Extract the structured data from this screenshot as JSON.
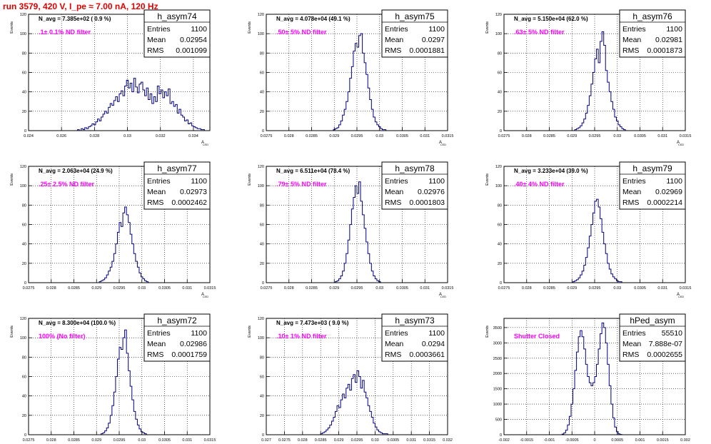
{
  "canvas_title": "run 3579,   420 V, I_pe ≈ 7.00 nA, 120 Hz",
  "common": {
    "ylabel": "Events",
    "xlabel": "A",
    "xlabel_sub": "LED",
    "stats_labels": [
      "Entries",
      "Mean",
      "RMS"
    ]
  },
  "colors": {
    "histogram_line": "#000080",
    "title_red": "#e00000",
    "annotation_magenta": "#ff00ff",
    "grid": "#000000",
    "frame": "#000000"
  },
  "chart_data": [
    {
      "type": "histogram",
      "title": "h_asym74",
      "stats": {
        "entries": "1100",
        "mean": "0.02954",
        "rms": "0.001099"
      },
      "navg_text": "N_avg = 7.385e+02 ( 0.9 %)",
      "filter_text": ".1± 0.1% ND filter",
      "xlim": [
        0.024,
        0.035
      ],
      "ylim": [
        0,
        120
      ],
      "xticks": [
        0.024,
        0.026,
        0.028,
        0.03,
        0.032,
        0.034
      ],
      "xtick_labels": [
        "0.024",
        "0.026",
        "0.028",
        "0.03",
        "0.032",
        "0.034"
      ],
      "yticks": [
        0,
        20,
        40,
        60,
        80,
        100,
        120
      ],
      "ytick_labels": [
        "0",
        "20",
        "40",
        "60",
        "80",
        "100",
        "120"
      ],
      "bin_start": 0.024,
      "bin_width": 0.00011,
      "values": [
        0,
        0,
        0,
        0,
        0,
        0,
        0,
        0,
        0,
        0,
        0,
        0,
        0,
        0,
        0,
        0,
        0,
        0,
        0,
        0,
        0,
        0,
        0,
        0,
        0,
        0,
        0,
        1,
        0,
        2,
        1,
        3,
        2,
        4,
        5,
        7,
        6,
        9,
        12,
        10,
        14,
        17,
        20,
        18,
        24,
        28,
        26,
        31,
        35,
        30,
        38,
        41,
        36,
        46,
        52,
        44,
        49,
        40,
        54,
        45,
        39,
        48,
        50,
        42,
        36,
        44,
        32,
        38,
        28,
        35,
        30,
        46,
        38,
        42,
        34,
        40,
        36,
        43,
        28,
        30,
        25,
        27,
        18,
        22,
        16,
        14,
        10,
        11,
        7,
        8,
        5,
        4,
        3,
        2,
        2,
        1,
        1,
        0,
        0,
        0
      ]
    },
    {
      "type": "histogram",
      "title": "h_asym75",
      "stats": {
        "entries": "1100",
        "mean": "0.0297",
        "rms": "0.0001881"
      },
      "navg_text": "N_avg = 4.078e+04 (49.1 %)",
      "filter_text": ".50± 5% ND filter",
      "xlim": [
        0.0275,
        0.0315
      ],
      "ylim": [
        0,
        120
      ],
      "xticks": [
        0.0275,
        0.028,
        0.0285,
        0.029,
        0.0295,
        0.03,
        0.0305,
        0.031,
        0.0315
      ],
      "xtick_labels": [
        "0.0275",
        "0.028",
        "0.0285",
        "0.029",
        "0.0295",
        "0.03",
        "0.0305",
        "0.031",
        "0.0315"
      ],
      "yticks": [
        0,
        20,
        40,
        60,
        80,
        100,
        120
      ],
      "ytick_labels": [
        "0",
        "20",
        "40",
        "60",
        "80",
        "100",
        "120"
      ],
      "bin_start": 0.0275,
      "bin_width": 4e-05,
      "values": [
        0,
        0,
        0,
        0,
        0,
        0,
        0,
        0,
        0,
        0,
        0,
        0,
        0,
        0,
        0,
        0,
        0,
        0,
        0,
        0,
        0,
        0,
        0,
        0,
        0,
        0,
        0,
        0,
        0,
        0,
        0,
        0,
        0,
        0,
        0,
        0,
        0,
        1,
        2,
        3,
        6,
        10,
        16,
        22,
        30,
        40,
        54,
        66,
        82,
        90,
        86,
        98,
        100,
        80,
        70,
        58,
        44,
        32,
        22,
        14,
        9,
        6,
        4,
        2,
        1,
        1,
        0,
        0,
        0,
        0,
        0,
        0,
        0,
        0,
        0,
        0,
        0,
        0,
        0,
        0,
        0,
        0,
        0,
        0,
        0,
        0,
        0,
        0,
        0,
        0,
        0,
        0,
        0,
        0,
        0,
        0,
        0,
        0,
        0,
        0
      ]
    },
    {
      "type": "histogram",
      "title": "h_asym76",
      "stats": {
        "entries": "1100",
        "mean": "0.02981",
        "rms": "0.0001873"
      },
      "navg_text": "N_avg = 5.150e+04 (62.0 %)",
      "filter_text": ".63± 5% ND filter",
      "xlim": [
        0.0275,
        0.0315
      ],
      "ylim": [
        0,
        120
      ],
      "xticks": [
        0.0275,
        0.028,
        0.0285,
        0.029,
        0.0295,
        0.03,
        0.0305,
        0.031,
        0.0315
      ],
      "xtick_labels": [
        "0.0275",
        "0.028",
        "0.0285",
        "0.029",
        "0.0295",
        "0.03",
        "0.0305",
        "0.031",
        "0.0315"
      ],
      "yticks": [
        0,
        20,
        40,
        60,
        80,
        100,
        120
      ],
      "ytick_labels": [
        "0",
        "20",
        "40",
        "60",
        "80",
        "100",
        "120"
      ],
      "bin_start": 0.0275,
      "bin_width": 4e-05,
      "values": [
        0,
        0,
        0,
        0,
        0,
        0,
        0,
        0,
        0,
        0,
        0,
        0,
        0,
        0,
        0,
        0,
        0,
        0,
        0,
        0,
        0,
        0,
        0,
        0,
        0,
        0,
        0,
        0,
        0,
        0,
        0,
        0,
        0,
        0,
        0,
        0,
        0,
        0,
        0,
        1,
        2,
        3,
        5,
        8,
        12,
        18,
        26,
        36,
        48,
        60,
        74,
        84,
        70,
        92,
        102,
        88,
        62,
        50,
        40,
        30,
        22,
        14,
        10,
        6,
        4,
        2,
        1,
        0,
        0,
        0,
        0,
        0,
        0,
        0,
        0,
        0,
        0,
        0,
        0,
        0,
        0,
        0,
        0,
        0,
        0,
        0,
        0,
        0,
        0,
        0,
        0,
        0,
        0,
        0,
        0,
        0,
        0,
        0,
        0,
        0
      ]
    },
    {
      "type": "histogram",
      "title": "h_asym77",
      "stats": {
        "entries": "1100",
        "mean": "0.02973",
        "rms": "0.0002462"
      },
      "navg_text": "N_avg = 2.063e+04 (24.9 %)",
      "filter_text": ".25± 2.5% ND filter",
      "xlim": [
        0.0275,
        0.0315
      ],
      "ylim": [
        0,
        120
      ],
      "xticks": [
        0.0275,
        0.028,
        0.0285,
        0.029,
        0.0295,
        0.03,
        0.0305,
        0.031,
        0.0315
      ],
      "xtick_labels": [
        "0.0275",
        "0.028",
        "0.0285",
        "0.029",
        "0.0295",
        "0.03",
        "0.0305",
        "0.031",
        "0.0315"
      ],
      "yticks": [
        0,
        20,
        40,
        60,
        80,
        100,
        120
      ],
      "ytick_labels": [
        "0",
        "20",
        "40",
        "60",
        "80",
        "100",
        "120"
      ],
      "bin_start": 0.0275,
      "bin_width": 4e-05,
      "values": [
        0,
        0,
        0,
        0,
        0,
        0,
        0,
        0,
        0,
        0,
        0,
        0,
        0,
        0,
        0,
        0,
        0,
        0,
        0,
        0,
        0,
        0,
        0,
        0,
        0,
        0,
        0,
        0,
        0,
        0,
        0,
        0,
        0,
        0,
        0,
        0,
        0,
        0,
        0,
        1,
        2,
        3,
        5,
        8,
        12,
        16,
        22,
        30,
        40,
        52,
        62,
        58,
        72,
        78,
        70,
        62,
        50,
        40,
        30,
        22,
        16,
        10,
        6,
        4,
        2,
        1,
        0,
        0,
        0,
        0,
        0,
        0,
        0,
        0,
        0,
        0,
        0,
        0,
        0,
        0,
        0,
        0,
        0,
        0,
        0,
        0,
        0,
        0,
        0,
        0,
        0,
        0,
        0,
        0,
        0,
        0,
        0,
        0,
        0,
        0
      ]
    },
    {
      "type": "histogram",
      "title": "h_asym78",
      "stats": {
        "entries": "1100",
        "mean": "0.02976",
        "rms": "0.0001803"
      },
      "navg_text": "N_avg = 6.511e+04 (78.4 %)",
      "filter_text": ".79± 5% ND filter",
      "xlim": [
        0.0275,
        0.0315
      ],
      "ylim": [
        0,
        120
      ],
      "xticks": [
        0.0275,
        0.028,
        0.0285,
        0.029,
        0.0295,
        0.03,
        0.0305,
        0.031,
        0.0315
      ],
      "xtick_labels": [
        "0.0275",
        "0.028",
        "0.0285",
        "0.029",
        "0.0295",
        "0.03",
        "0.0305",
        "0.031",
        "0.0315"
      ],
      "yticks": [
        0,
        20,
        40,
        60,
        80,
        100,
        120
      ],
      "ytick_labels": [
        "0",
        "20",
        "40",
        "60",
        "80",
        "100",
        "120"
      ],
      "bin_start": 0.0275,
      "bin_width": 4e-05,
      "values": [
        0,
        0,
        0,
        0,
        0,
        0,
        0,
        0,
        0,
        0,
        0,
        0,
        0,
        0,
        0,
        0,
        0,
        0,
        0,
        0,
        0,
        0,
        0,
        0,
        0,
        0,
        0,
        0,
        0,
        0,
        0,
        0,
        0,
        0,
        0,
        0,
        0,
        0,
        1,
        2,
        4,
        7,
        12,
        20,
        30,
        44,
        60,
        76,
        88,
        100,
        92,
        104,
        84,
        70,
        56,
        42,
        30,
        20,
        12,
        7,
        4,
        2,
        1,
        0,
        0,
        0,
        0,
        0,
        0,
        0,
        0,
        0,
        0,
        0,
        0,
        0,
        0,
        0,
        0,
        0,
        0,
        0,
        0,
        0,
        0,
        0,
        0,
        0,
        0,
        0,
        0,
        0,
        0,
        0,
        0,
        0,
        0,
        0,
        0,
        0
      ]
    },
    {
      "type": "histogram",
      "title": "h_asym79",
      "stats": {
        "entries": "1100",
        "mean": "0.02969",
        "rms": "0.0002214"
      },
      "navg_text": "N_avg = 3.233e+04 (39.0 %)",
      "filter_text": ".40± 4% ND filter",
      "xlim": [
        0.0275,
        0.0315
      ],
      "ylim": [
        0,
        120
      ],
      "xticks": [
        0.0275,
        0.028,
        0.0285,
        0.029,
        0.0295,
        0.03,
        0.0305,
        0.031,
        0.0315
      ],
      "xtick_labels": [
        "0.0275",
        "0.028",
        "0.0285",
        "0.029",
        "0.0295",
        "0.03",
        "0.0305",
        "0.031",
        "0.0315"
      ],
      "yticks": [
        0,
        20,
        40,
        60,
        80,
        100,
        120
      ],
      "ytick_labels": [
        "0",
        "20",
        "40",
        "60",
        "80",
        "100",
        "120"
      ],
      "bin_start": 0.0275,
      "bin_width": 4e-05,
      "values": [
        0,
        0,
        0,
        0,
        0,
        0,
        0,
        0,
        0,
        0,
        0,
        0,
        0,
        0,
        0,
        0,
        0,
        0,
        0,
        0,
        0,
        0,
        0,
        0,
        0,
        0,
        0,
        0,
        0,
        0,
        0,
        0,
        0,
        0,
        0,
        0,
        0,
        0,
        1,
        2,
        3,
        5,
        8,
        12,
        18,
        26,
        36,
        48,
        60,
        72,
        84,
        86,
        78,
        66,
        52,
        40,
        30,
        20,
        14,
        9,
        6,
        4,
        2,
        1,
        1,
        0,
        0,
        0,
        0,
        0,
        0,
        0,
        0,
        0,
        0,
        0,
        0,
        0,
        0,
        0,
        0,
        0,
        0,
        0,
        0,
        0,
        0,
        0,
        0,
        0,
        0,
        0,
        0,
        0,
        0,
        0,
        0,
        0,
        0,
        0
      ]
    },
    {
      "type": "histogram",
      "title": "h_asym72",
      "stats": {
        "entries": "1100",
        "mean": "0.02986",
        "rms": "0.0001759"
      },
      "navg_text": "N_avg = 8.300e+04 (100.0 %)",
      "filter_text": "100% (No filter)",
      "xlim": [
        0.0275,
        0.0315
      ],
      "ylim": [
        0,
        120
      ],
      "xticks": [
        0.0275,
        0.028,
        0.0285,
        0.029,
        0.0295,
        0.03,
        0.0305,
        0.031,
        0.0315
      ],
      "xtick_labels": [
        "0.0275",
        "0.028",
        "0.0285",
        "0.029",
        "0.0295",
        "0.03",
        "0.0305",
        "0.031",
        "0.0315"
      ],
      "yticks": [
        0,
        20,
        40,
        60,
        80,
        100,
        120
      ],
      "ytick_labels": [
        "0",
        "20",
        "40",
        "60",
        "80",
        "100",
        "120"
      ],
      "bin_start": 0.0275,
      "bin_width": 4e-05,
      "values": [
        0,
        0,
        0,
        0,
        0,
        0,
        0,
        0,
        0,
        0,
        0,
        0,
        0,
        0,
        0,
        0,
        0,
        0,
        0,
        0,
        0,
        0,
        0,
        0,
        0,
        0,
        0,
        0,
        0,
        0,
        0,
        0,
        0,
        0,
        0,
        0,
        0,
        0,
        0,
        0,
        1,
        2,
        4,
        7,
        12,
        20,
        30,
        44,
        60,
        78,
        90,
        88,
        100,
        108,
        84,
        66,
        50,
        36,
        24,
        16,
        10,
        6,
        3,
        2,
        1,
        0,
        0,
        0,
        0,
        0,
        0,
        0,
        0,
        0,
        0,
        0,
        0,
        0,
        0,
        0,
        0,
        0,
        0,
        0,
        0,
        0,
        0,
        0,
        0,
        0,
        0,
        0,
        0,
        0,
        0,
        0,
        0,
        0,
        0,
        0
      ]
    },
    {
      "type": "histogram",
      "title": "h_asym73",
      "stats": {
        "entries": "1100",
        "mean": "0.0294",
        "rms": "0.0003661"
      },
      "navg_text": "N_avg = 7.473e+03 ( 9.0 %)",
      "filter_text": ".10± 1% ND filter",
      "xlim": [
        0.027,
        0.032
      ],
      "ylim": [
        0,
        120
      ],
      "xticks": [
        0.027,
        0.0275,
        0.028,
        0.0285,
        0.029,
        0.0295,
        0.03,
        0.0305,
        0.031,
        0.0315,
        0.032
      ],
      "xtick_labels": [
        "0.027",
        "0.0275",
        "0.028",
        "0.0285",
        "0.029",
        "0.0295",
        "0.03",
        "0.0305",
        "0.031",
        "0.0315",
        "0.032"
      ],
      "yticks": [
        0,
        20,
        40,
        60,
        80,
        100,
        120
      ],
      "ytick_labels": [
        "0",
        "20",
        "40",
        "60",
        "80",
        "100",
        "120"
      ],
      "bin_start": 0.027,
      "bin_width": 5e-05,
      "values": [
        0,
        0,
        0,
        0,
        0,
        0,
        0,
        0,
        0,
        0,
        0,
        0,
        0,
        0,
        0,
        0,
        0,
        0,
        0,
        0,
        0,
        0,
        0,
        0,
        0,
        0,
        0,
        0,
        0,
        0,
        1,
        2,
        3,
        5,
        7,
        10,
        14,
        18,
        24,
        30,
        28,
        36,
        42,
        38,
        48,
        52,
        46,
        58,
        62,
        54,
        66,
        60,
        48,
        56,
        44,
        38,
        30,
        24,
        18,
        12,
        8,
        5,
        3,
        2,
        1,
        1,
        1,
        0,
        0,
        0,
        0,
        0,
        0,
        0,
        0,
        0,
        0,
        0,
        0,
        0,
        0,
        0,
        0,
        0,
        0,
        0,
        0,
        0,
        0,
        0,
        0,
        0,
        0,
        0,
        0,
        0,
        0,
        0,
        0,
        0
      ]
    },
    {
      "type": "histogram",
      "title": "hPed_asym",
      "stats": {
        "entries": "55510",
        "mean": "7.888e-07",
        "rms": "0.0002655"
      },
      "navg_text": "",
      "filter_text": "Shutter Closed",
      "xlim": [
        -0.002,
        0.002
      ],
      "ylim": [
        0,
        3800
      ],
      "xticks": [
        -0.002,
        -0.0015,
        -0.001,
        -0.0005,
        0,
        0.0005,
        0.001,
        0.0015,
        0.002
      ],
      "xtick_labels": [
        "-0.002",
        "-0.0015",
        "-0.001",
        "-0.0005",
        "0",
        "0.0005",
        "0.001",
        "0.0015",
        "0.002"
      ],
      "yticks": [
        0,
        500,
        1000,
        1500,
        2000,
        2500,
        3000,
        3500
      ],
      "ytick_labels": [
        "0",
        "500",
        "1000",
        "1500",
        "2000",
        "2500",
        "3000",
        "3500"
      ],
      "bin_start": -0.002,
      "bin_width": 4e-05,
      "values": [
        0,
        0,
        0,
        0,
        0,
        0,
        0,
        0,
        0,
        0,
        0,
        0,
        0,
        0,
        0,
        0,
        0,
        0,
        0,
        0,
        0,
        0,
        0,
        0,
        0,
        0,
        0,
        0,
        0,
        0,
        0,
        0,
        20,
        60,
        150,
        320,
        600,
        1000,
        1500,
        2100,
        2700,
        3200,
        3400,
        3200,
        2800,
        2300,
        1900,
        1700,
        1600,
        1700,
        1900,
        2300,
        2800,
        3300,
        3650,
        3500,
        3000,
        2300,
        1600,
        1000,
        550,
        250,
        100,
        30,
        10,
        0,
        0,
        0,
        0,
        0,
        0,
        0,
        0,
        0,
        0,
        0,
        0,
        0,
        0,
        0,
        0,
        0,
        0,
        0,
        0,
        0,
        0,
        0,
        0,
        0,
        0,
        0,
        0,
        0,
        0,
        0,
        0,
        0,
        0,
        0
      ]
    }
  ]
}
